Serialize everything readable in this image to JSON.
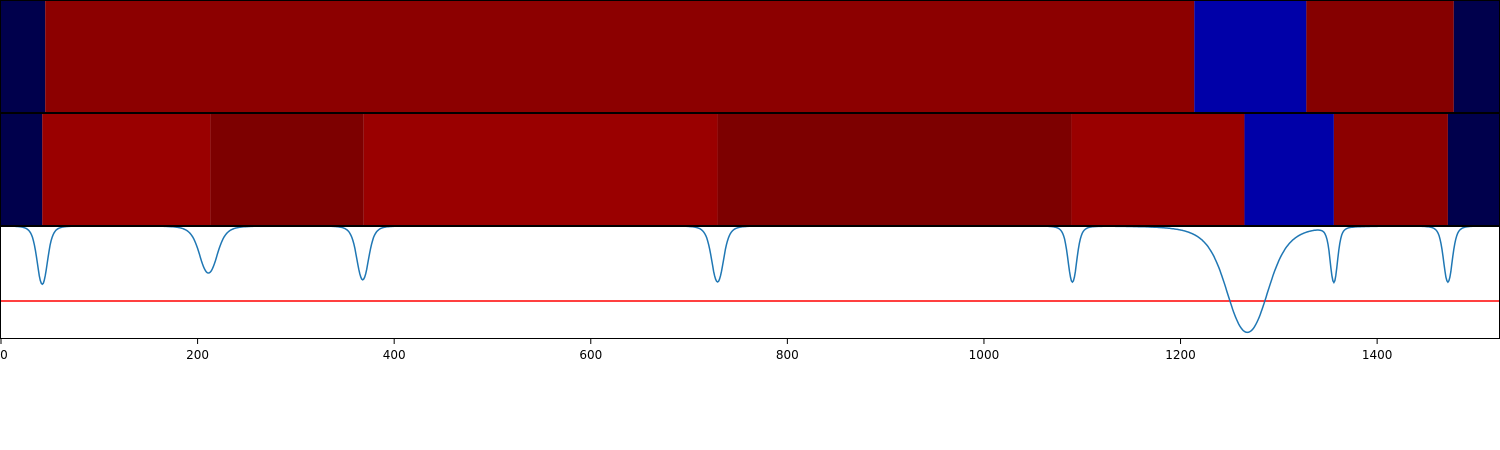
{
  "chart_data": {
    "type": "heatmap",
    "x_range": [
      0,
      1525
    ],
    "x_ticks": [
      {
        "value": 0,
        "label": "0"
      },
      {
        "value": 200,
        "label": "200"
      },
      {
        "value": 400,
        "label": "400"
      },
      {
        "value": 600,
        "label": "600"
      },
      {
        "value": 800,
        "label": "800"
      },
      {
        "value": 1000,
        "label": "1000"
      },
      {
        "value": 1200,
        "label": "1200"
      },
      {
        "value": 1400,
        "label": "1400"
      }
    ],
    "segment_rows": [
      {
        "segments": [
          {
            "start": 0,
            "end": 45,
            "color": "#00004c"
          },
          {
            "start": 45,
            "end": 1214,
            "color": "#8c0000"
          },
          {
            "start": 1214,
            "end": 1328,
            "color": "#0000a8"
          },
          {
            "start": 1328,
            "end": 1478,
            "color": "#850000"
          },
          {
            "start": 1478,
            "end": 1525,
            "color": "#00004c"
          }
        ]
      },
      {
        "segments": [
          {
            "start": 0,
            "end": 42,
            "color": "#00004c"
          },
          {
            "start": 42,
            "end": 213,
            "color": "#9a0000"
          },
          {
            "start": 213,
            "end": 369,
            "color": "#7d0000"
          },
          {
            "start": 369,
            "end": 729,
            "color": "#9a0000"
          },
          {
            "start": 729,
            "end": 1089,
            "color": "#7d0000"
          },
          {
            "start": 1089,
            "end": 1265,
            "color": "#9a0000"
          },
          {
            "start": 1265,
            "end": 1356,
            "color": "#0000a8"
          },
          {
            "start": 1356,
            "end": 1472,
            "color": "#8c0000"
          },
          {
            "start": 1472,
            "end": 1525,
            "color": "#00004c"
          }
        ]
      }
    ],
    "signal": {
      "color": "#1f77b4",
      "y_range": [
        0,
        1.0
      ],
      "baseline": 1.0,
      "dips": [
        {
          "x": 42,
          "depth": 0.52,
          "width": 7
        },
        {
          "x": 211,
          "depth": 0.42,
          "width": 12
        },
        {
          "x": 368,
          "depth": 0.48,
          "width": 8
        },
        {
          "x": 729,
          "depth": 0.5,
          "width": 8
        },
        {
          "x": 1090,
          "depth": 0.5,
          "width": 6
        },
        {
          "x": 1268,
          "depth": 0.95,
          "width": 28
        },
        {
          "x": 1356,
          "depth": 0.49,
          "width": 5
        },
        {
          "x": 1472,
          "depth": 0.5,
          "width": 6
        }
      ],
      "threshold": 0.33,
      "threshold_color": "#ff0000"
    }
  }
}
